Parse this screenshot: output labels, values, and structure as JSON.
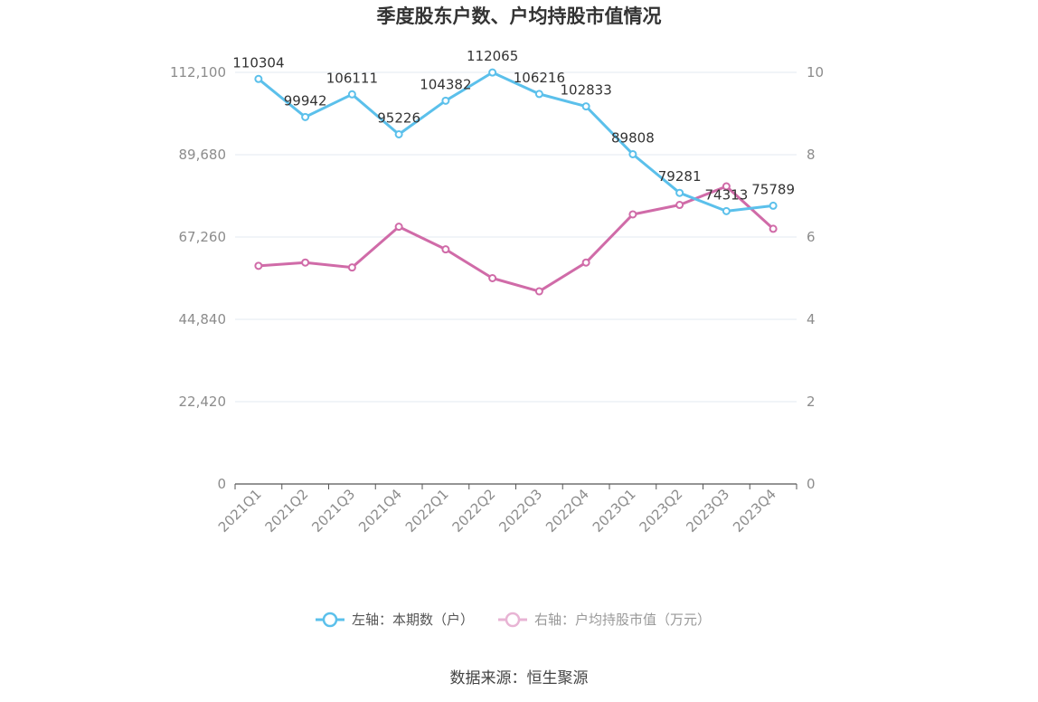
{
  "chart_data": {
    "type": "line",
    "title": "季度股东户数、户均持股市值情况",
    "categories": [
      "2021Q1",
      "2021Q2",
      "2021Q3",
      "2021Q4",
      "2022Q1",
      "2022Q2",
      "2022Q3",
      "2022Q4",
      "2023Q1",
      "2023Q2",
      "2023Q3",
      "2023Q4"
    ],
    "y_left": {
      "ylim": [
        0,
        112100
      ],
      "ticks": [
        "0",
        "22,420",
        "44,840",
        "67,260",
        "89,680",
        "112,100"
      ]
    },
    "y_right": {
      "ylim": [
        0,
        10
      ],
      "ticks": [
        "0",
        "2",
        "4",
        "6",
        "8",
        "10"
      ]
    },
    "series": [
      {
        "name": "左轴：本期数（户）",
        "axis": "left",
        "color": "#5bc0eb",
        "values": [
          110304,
          99942,
          106111,
          95226,
          104382,
          112065,
          106216,
          102833,
          89808,
          79281,
          74313,
          75789
        ],
        "labels": [
          "110304",
          "99942",
          "106111",
          "95226",
          "104382",
          "112065",
          "106216",
          "102833",
          "89808",
          "79281",
          "74313",
          "75789"
        ]
      },
      {
        "name": "右轴：户均持股市值（万元）",
        "axis": "right",
        "color": "#d06ba8",
        "values": [
          5.3,
          5.38,
          5.26,
          6.25,
          5.7,
          5.0,
          4.68,
          5.38,
          6.55,
          6.78,
          7.23,
          6.2
        ]
      }
    ],
    "grid": true,
    "legend": "bottom-center",
    "legend_colors": [
      "#5bc0eb",
      "#e8b4d4"
    ]
  },
  "source": "数据来源：恒生聚源"
}
